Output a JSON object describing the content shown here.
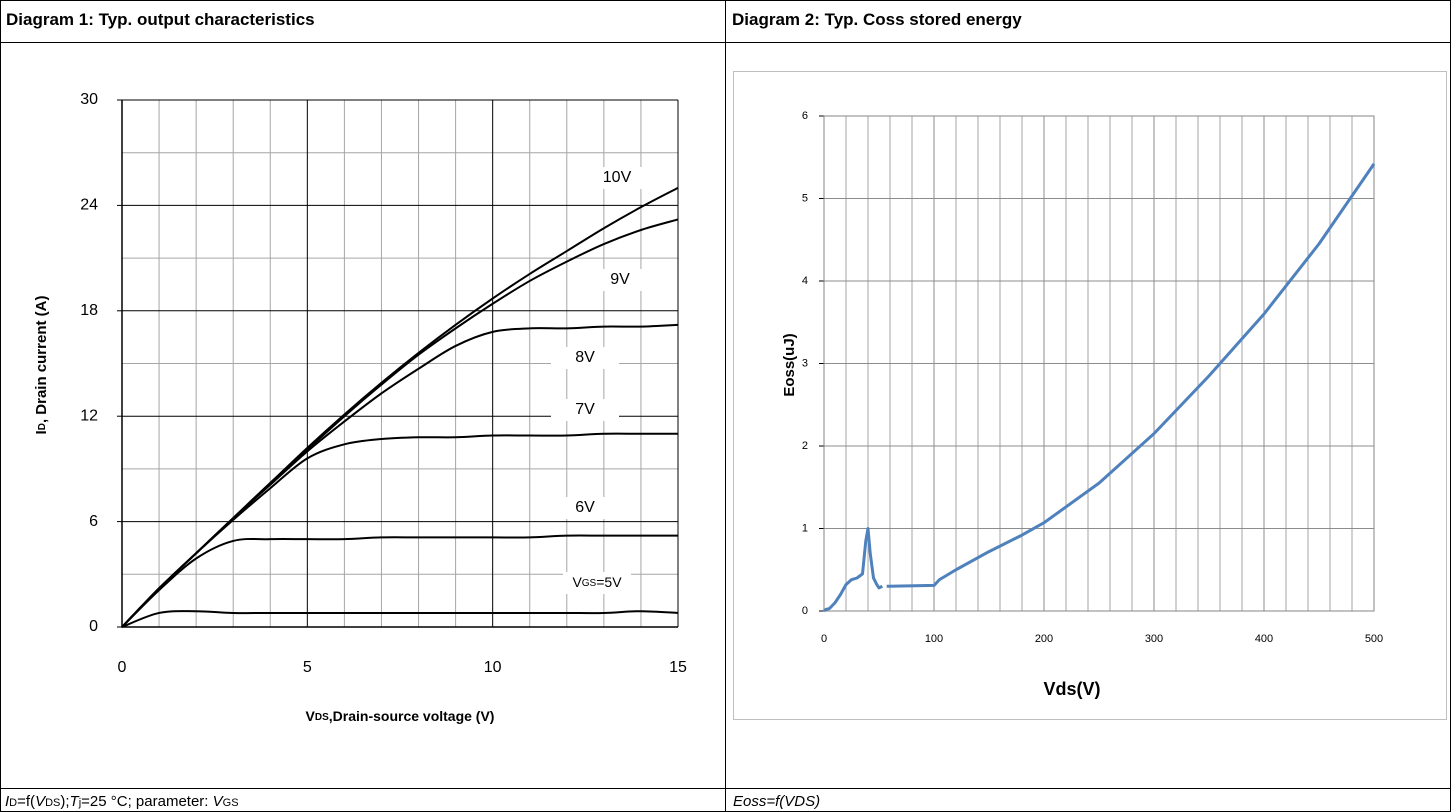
{
  "chart_data": [
    {
      "type": "line",
      "title": "Diagram 1: Typ. output characteristics",
      "xlabel_parts": [
        "V",
        "DS",
        ",Drain-source voltage (V)"
      ],
      "ylabel_parts": [
        "I",
        "D",
        ", Drain current (A)"
      ],
      "x": [
        0,
        1,
        2,
        3,
        4,
        5,
        6,
        7,
        8,
        9,
        10,
        11,
        12,
        13,
        14,
        15
      ],
      "series": [
        {
          "name": "10V",
          "color": "#000000",
          "values": [
            0,
            2.2,
            4.2,
            6.2,
            8.2,
            10.2,
            12.1,
            13.9,
            15.6,
            17.2,
            18.7,
            20.1,
            21.4,
            22.7,
            23.9,
            25.0
          ]
        },
        {
          "name": "9V",
          "color": "#000000",
          "values": [
            0,
            2.2,
            4.2,
            6.2,
            8.2,
            10.1,
            12.0,
            13.8,
            15.5,
            17.0,
            18.4,
            19.7,
            20.8,
            21.8,
            22.6,
            23.2
          ]
        },
        {
          "name": "8V",
          "color": "#000000",
          "values": [
            0,
            2.2,
            4.2,
            6.2,
            8.1,
            10.0,
            11.7,
            13.3,
            14.7,
            16.0,
            16.8,
            17.0,
            17.0,
            17.1,
            17.1,
            17.2
          ]
        },
        {
          "name": "7V",
          "color": "#000000",
          "values": [
            0,
            2.2,
            4.2,
            6.1,
            7.9,
            9.6,
            10.4,
            10.7,
            10.8,
            10.8,
            10.9,
            10.9,
            10.9,
            11.0,
            11.0,
            11.0
          ]
        },
        {
          "name": "6V",
          "color": "#000000",
          "values": [
            0,
            2.1,
            3.9,
            4.9,
            5.0,
            5.0,
            5.0,
            5.1,
            5.1,
            5.1,
            5.1,
            5.1,
            5.2,
            5.2,
            5.2,
            5.2
          ]
        },
        {
          "name_parts": [
            "V",
            "GS",
            "=5V"
          ],
          "color": "#000000",
          "values": [
            0,
            0.8,
            0.9,
            0.8,
            0.8,
            0.8,
            0.8,
            0.8,
            0.8,
            0.8,
            0.8,
            0.8,
            0.8,
            0.8,
            0.9,
            0.8
          ]
        }
      ],
      "xlim": [
        0,
        15
      ],
      "ylim": [
        0,
        30
      ],
      "xticks": [
        0,
        5,
        10,
        15
      ],
      "yticks": [
        0,
        6,
        12,
        18,
        24,
        30
      ],
      "minor_xticks": [
        1,
        2,
        3,
        4,
        6,
        7,
        8,
        9,
        11,
        12,
        13,
        14
      ],
      "minor_yticks": [
        3,
        9,
        15,
        21,
        27
      ],
      "grid": true,
      "smooth": true,
      "caption_parts": [
        "I",
        "D",
        "=f(",
        "V",
        "DS",
        ");",
        "T",
        "j",
        "=25 °C; parameter: ",
        "V",
        "GS"
      ]
    },
    {
      "type": "line",
      "title": "Diagram 2: Typ. Coss stored energy",
      "xlabel": "Vds(V)",
      "ylabel": "Eoss(uJ)",
      "x": [
        0,
        2,
        5,
        10,
        15,
        20,
        25,
        30,
        35,
        38,
        40,
        42,
        45,
        48,
        50,
        53,
        55,
        57,
        100,
        105,
        120,
        150,
        180,
        200,
        250,
        300,
        350,
        400,
        450,
        500
      ],
      "series": [
        {
          "color": "#4f81bd",
          "values": [
            0,
            0.02,
            0.03,
            0.1,
            0.2,
            0.32,
            0.38,
            0.4,
            0.45,
            0.85,
            1.0,
            0.7,
            0.4,
            0.32,
            0.28,
            0.3,
            null,
            0.3,
            0.31,
            0.38,
            0.5,
            0.72,
            0.92,
            1.07,
            1.55,
            2.15,
            2.85,
            3.6,
            4.45,
            5.42
          ]
        }
      ],
      "xlim": [
        0,
        500
      ],
      "ylim": [
        0,
        6
      ],
      "xticks": [
        0,
        100,
        200,
        300,
        400,
        500
      ],
      "yticks": [
        0,
        1,
        2,
        3,
        4,
        5,
        6
      ],
      "minor_xticks": [
        20,
        40,
        60,
        80,
        120,
        140,
        160,
        180,
        220,
        240,
        260,
        280,
        320,
        340,
        360,
        380,
        420,
        440,
        460,
        480
      ],
      "grid": true,
      "smooth": false,
      "caption": "Eoss=f(VDS)"
    }
  ]
}
